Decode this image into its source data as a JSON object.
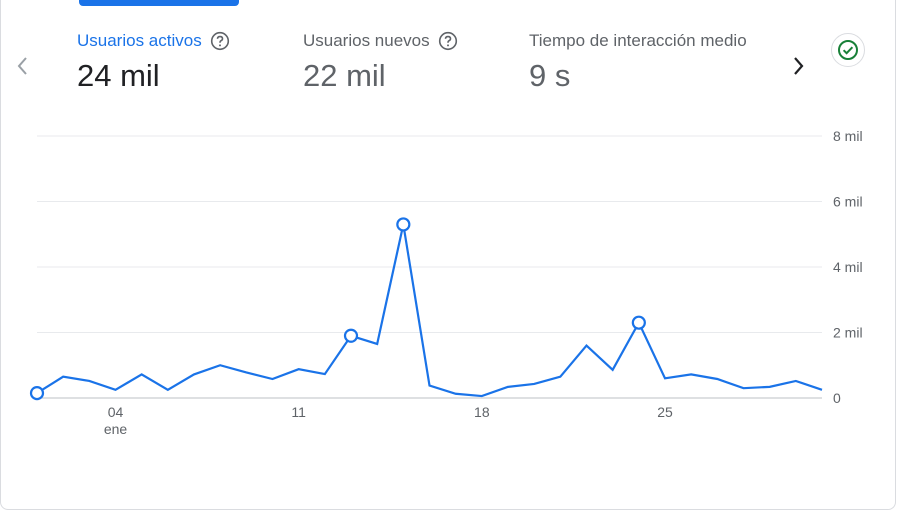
{
  "colors": {
    "accent": "#1a73e8",
    "status": "#188038",
    "grid": "#e8eaed",
    "text": "#5f6368"
  },
  "nav": {
    "prev_icon": "chevron-left-icon",
    "next_icon": "chevron-right-icon"
  },
  "metrics": [
    {
      "label": "Usuarios activos",
      "value": "24 mil",
      "active": true,
      "help": true
    },
    {
      "label": "Usuarios nuevos",
      "value": "22 mil",
      "active": false,
      "help": true
    },
    {
      "label": "Tiempo de interacción medio",
      "value": "9 s",
      "active": false,
      "help": false
    }
  ],
  "status": {
    "icon": "check-circle-icon"
  },
  "chart_data": {
    "type": "line",
    "x": [
      "01/01",
      "02/01",
      "03/01",
      "04/01",
      "05/01",
      "06/01",
      "07/01",
      "08/01",
      "09/01",
      "10/01",
      "11/01",
      "12/01",
      "13/01",
      "14/01",
      "15/01",
      "16/01",
      "17/01",
      "18/01",
      "19/01",
      "20/01",
      "21/01",
      "22/01",
      "23/01",
      "24/01",
      "25/01",
      "26/01",
      "27/01",
      "28/01",
      "29/01",
      "30/01",
      "31/01"
    ],
    "series": [
      {
        "values": [
          150,
          650,
          520,
          250,
          720,
          250,
          720,
          1000,
          780,
          580,
          880,
          730,
          1900,
          1650,
          5300,
          380,
          130,
          60,
          340,
          430,
          650,
          1600,
          860,
          2300,
          600,
          720,
          580,
          300,
          340,
          520,
          250
        ],
        "markers": [
          0,
          12,
          14,
          23
        ]
      }
    ],
    "x_tick_labels": [
      {
        "index": 3,
        "label": "04",
        "sublabel": "ene"
      },
      {
        "index": 10,
        "label": "11",
        "sublabel": ""
      },
      {
        "index": 17,
        "label": "18",
        "sublabel": ""
      },
      {
        "index": 24,
        "label": "25",
        "sublabel": ""
      }
    ],
    "y_ticks": [
      {
        "value": 0,
        "label": "0"
      },
      {
        "value": 2000,
        "label": "2 mil"
      },
      {
        "value": 4000,
        "label": "4 mil"
      },
      {
        "value": 6000,
        "label": "6 mil"
      },
      {
        "value": 8000,
        "label": "8 mil"
      }
    ],
    "ylim": [
      0,
      8000
    ],
    "y_axis_side": "right",
    "grid": true
  }
}
